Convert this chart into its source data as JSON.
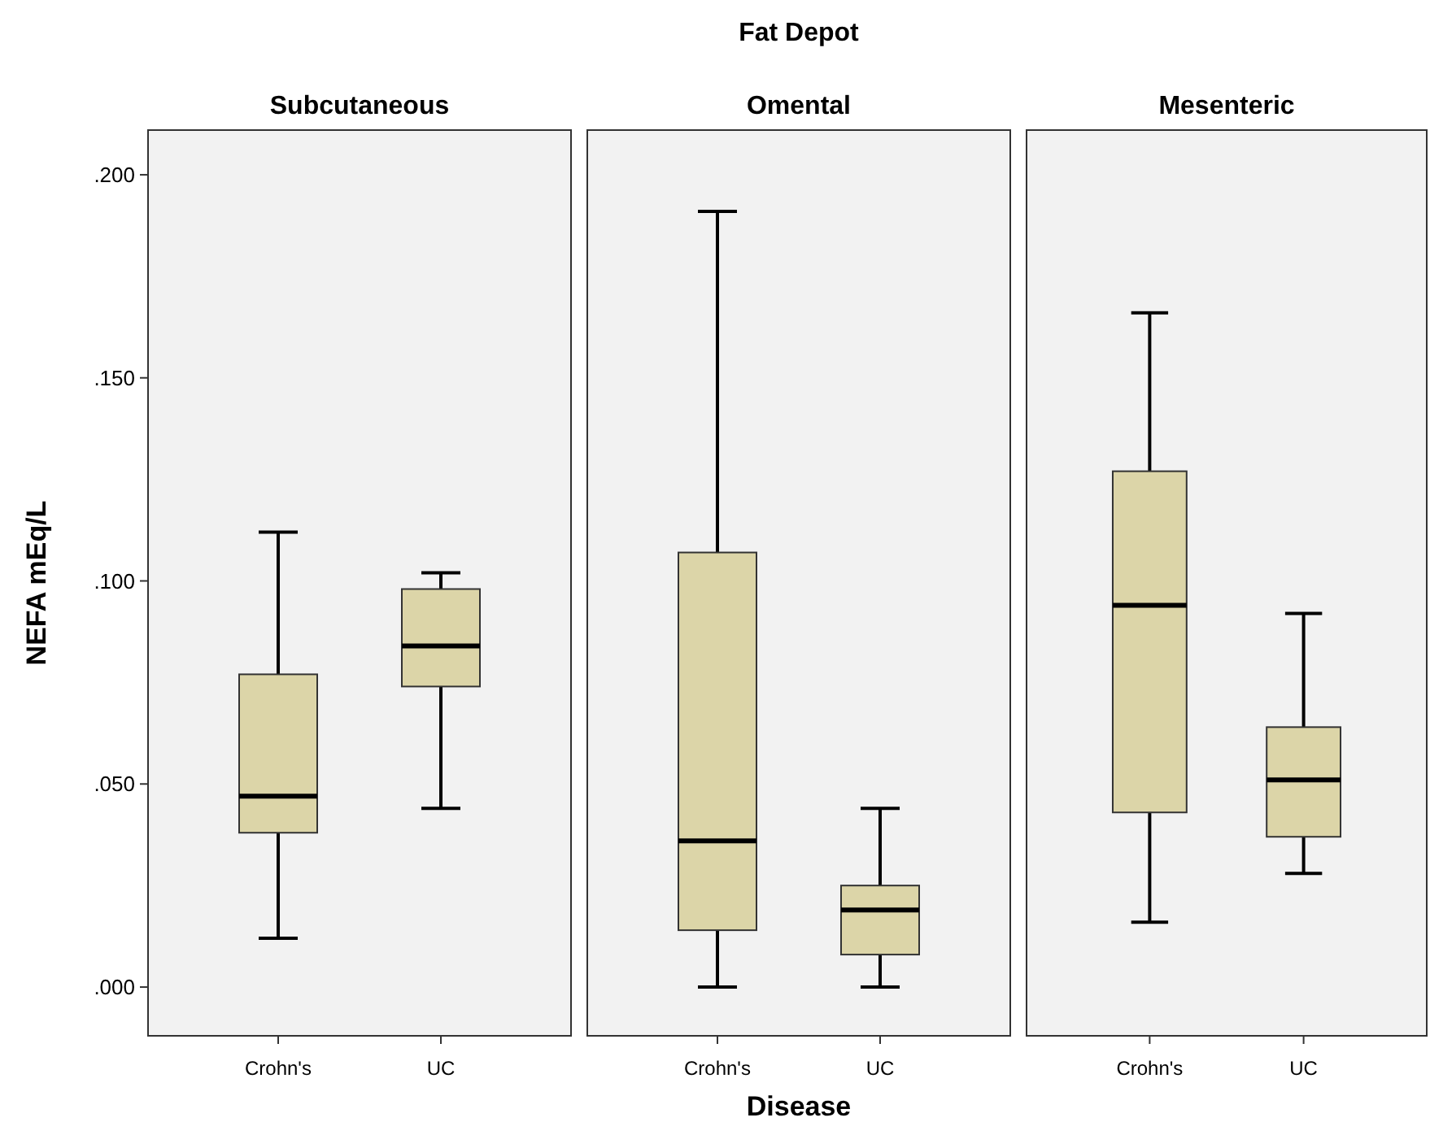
{
  "chart_data": [
    {
      "type": "box",
      "title": "Subcutaneous",
      "ylabel": "NEFA mEq/L",
      "categories": [
        "Crohn's",
        "UC"
      ],
      "color": "#dcd5a8",
      "grid": false,
      "ylim": [
        -0.012,
        0.211
      ],
      "yticks": [
        {
          "value": 0,
          "label": ".000"
        },
        {
          "value": 0.05,
          "label": ".050"
        },
        {
          "value": 0.1,
          "label": ".100"
        },
        {
          "value": 0.15,
          "label": ".150"
        },
        {
          "value": 0.2,
          "label": ".200"
        }
      ],
      "boxes": [
        {
          "low": 0.012,
          "q1": 0.038,
          "median": 0.047,
          "q3": 0.077,
          "high": 0.112
        },
        {
          "low": 0.044,
          "q1": 0.074,
          "median": 0.084,
          "q3": 0.098,
          "high": 0.102
        }
      ]
    },
    {
      "type": "box",
      "title": "Omental",
      "xlabel": "Disease",
      "annotations": [
        "Fat Depot"
      ],
      "categories": [
        "Crohn's",
        "UC"
      ],
      "color": "#dcd5a8",
      "grid": false,
      "tick_labels": "x",
      "ylim": [
        -0.012,
        0.211
      ],
      "boxes": [
        {
          "low": 0,
          "q1": 0.014,
          "median": 0.036,
          "q3": 0.107,
          "high": 0.191
        },
        {
          "low": 0,
          "q1": 0.008,
          "median": 0.019,
          "q3": 0.025,
          "high": 0.044
        }
      ]
    },
    {
      "type": "box",
      "title": "Mesenteric",
      "categories": [
        "Crohn's",
        "UC"
      ],
      "color": "#dcd5a8",
      "grid": false,
      "tick_labels": "x",
      "ylim": [
        -0.012,
        0.211
      ],
      "boxes": [
        {
          "low": 0.016,
          "q1": 0.043,
          "median": 0.094,
          "q3": 0.127,
          "high": 0.166
        },
        {
          "low": 0.028,
          "q1": 0.037,
          "median": 0.051,
          "q3": 0.064,
          "high": 0.092
        }
      ]
    }
  ]
}
